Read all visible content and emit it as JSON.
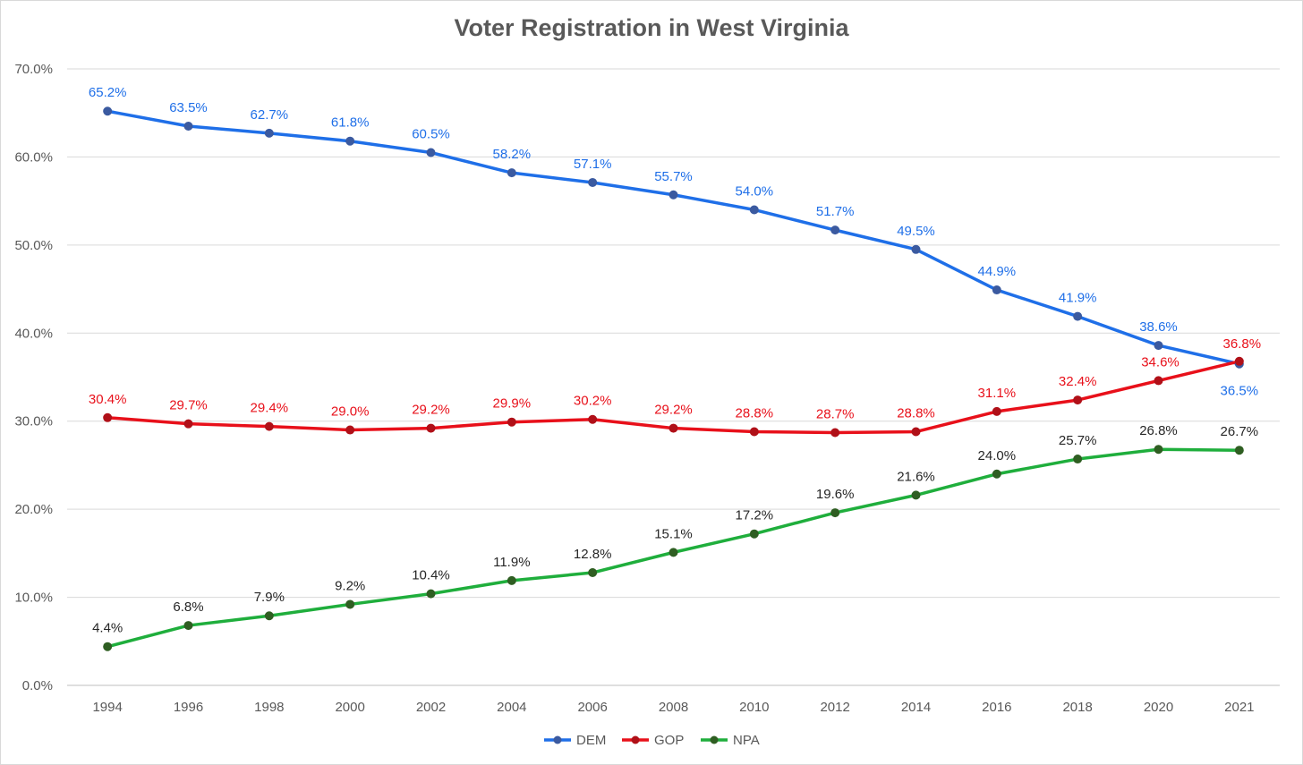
{
  "chart_data": {
    "type": "line",
    "title": "Voter Registration in West Virginia",
    "xlabel": "",
    "ylabel": "",
    "categories": [
      "1994",
      "1996",
      "1998",
      "2000",
      "2002",
      "2004",
      "2006",
      "2008",
      "2010",
      "2012",
      "2014",
      "2016",
      "2018",
      "2020",
      "2021"
    ],
    "ylim": [
      0,
      70
    ],
    "yticks": [
      "0.0%",
      "10.0%",
      "20.0%",
      "30.0%",
      "40.0%",
      "50.0%",
      "60.0%",
      "70.0%"
    ],
    "grid": true,
    "legend_position": "bottom",
    "series": [
      {
        "name": "DEM",
        "color": "#1f6fe8",
        "marker_color": "#3b5aa0",
        "values": [
          65.2,
          63.5,
          62.7,
          61.8,
          60.5,
          58.2,
          57.1,
          55.7,
          54.0,
          51.7,
          49.5,
          44.9,
          41.9,
          38.6,
          36.5
        ],
        "labels": [
          "65.2%",
          "63.5%",
          "62.7%",
          "61.8%",
          "60.5%",
          "58.2%",
          "57.1%",
          "55.7%",
          "54.0%",
          "51.7%",
          "49.5%",
          "44.9%",
          "41.9%",
          "38.6%",
          "36.5%"
        ]
      },
      {
        "name": "GOP",
        "color": "#e8101a",
        "marker_color": "#b01018",
        "values": [
          30.4,
          29.7,
          29.4,
          29.0,
          29.2,
          29.9,
          30.2,
          29.2,
          28.8,
          28.7,
          28.8,
          31.1,
          32.4,
          34.6,
          36.8
        ],
        "labels": [
          "30.4%",
          "29.7%",
          "29.4%",
          "29.0%",
          "29.2%",
          "29.9%",
          "30.2%",
          "29.2%",
          "28.8%",
          "28.7%",
          "28.8%",
          "31.1%",
          "32.4%",
          "34.6%",
          "36.8%"
        ]
      },
      {
        "name": "NPA",
        "color": "#1fae3c",
        "marker_color": "#2f5e22",
        "label_color": "#262626",
        "values": [
          4.4,
          6.8,
          7.9,
          9.2,
          10.4,
          11.9,
          12.8,
          15.1,
          17.2,
          19.6,
          21.6,
          24.0,
          25.7,
          26.8,
          26.7
        ],
        "labels": [
          "4.4%",
          "6.8%",
          "7.9%",
          "9.2%",
          "10.4%",
          "11.9%",
          "12.8%",
          "15.1%",
          "17.2%",
          "19.6%",
          "21.6%",
          "24.0%",
          "25.7%",
          "26.8%",
          "26.7%"
        ]
      }
    ]
  }
}
